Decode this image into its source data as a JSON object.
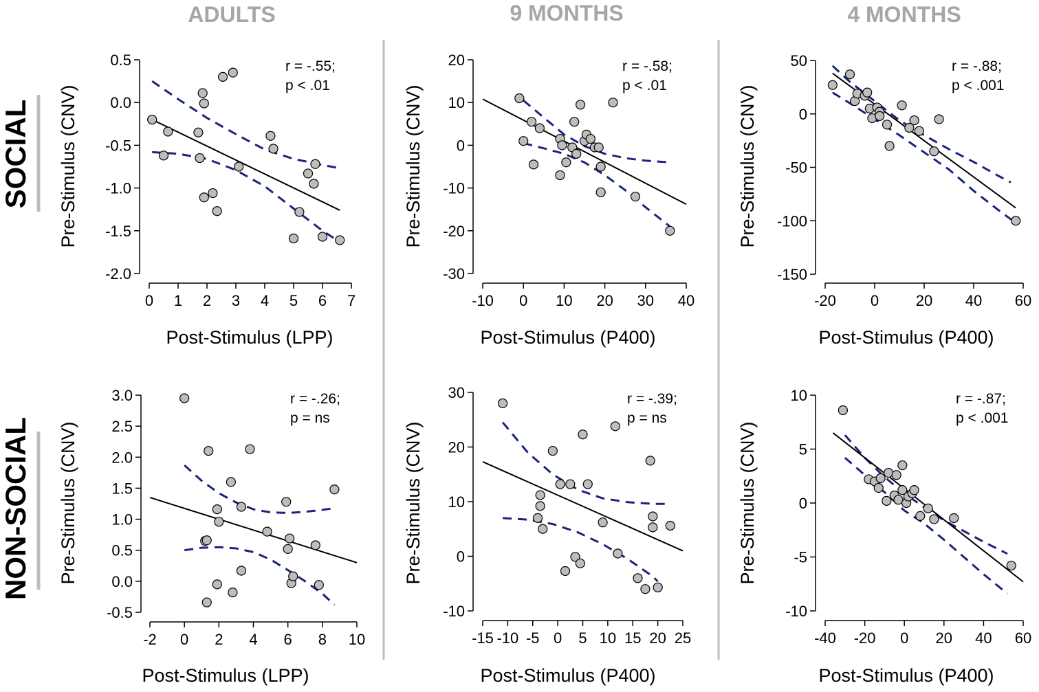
{
  "column_titles": [
    "ADULTS",
    "9 MONTHS",
    "4 MONTHS"
  ],
  "row_titles": [
    "SOCIAL",
    "NON-SOCIAL"
  ],
  "colors": {
    "column_title": "#a6a6a6",
    "separator": "#bdbdbd",
    "point_fill": "#bdbdbd",
    "regression_line": "#000000",
    "confidence_band": "#1a237e"
  },
  "chart_data": [
    {
      "id": "social-adults",
      "type": "scatter",
      "xlabel": "Post-Stimulus (LPP)",
      "ylabel": "Pre-Stimulus (CNV)",
      "xlim": [
        0,
        7
      ],
      "ylim": [
        -2.0,
        0.5
      ],
      "xticks": [
        0,
        1,
        2,
        3,
        4,
        5,
        6,
        7
      ],
      "xtick_labels": [
        "0",
        "1",
        "2",
        "3",
        "4",
        "5",
        "6",
        "7"
      ],
      "yticks": [
        -2.0,
        -1.5,
        -1.0,
        -0.5,
        0.0,
        0.5
      ],
      "ytick_labels": [
        "-2.0",
        "-1.5",
        "-1.0",
        "-0.5",
        "0.0",
        "0.5"
      ],
      "stats": [
        "r = -.55;",
        "p < .01"
      ],
      "points": [
        [
          0.1,
          -0.2
        ],
        [
          0.5,
          -0.62
        ],
        [
          0.65,
          -0.34
        ],
        [
          1.7,
          -0.35
        ],
        [
          1.75,
          -0.65
        ],
        [
          1.85,
          0.11
        ],
        [
          1.9,
          -0.01
        ],
        [
          1.9,
          -1.11
        ],
        [
          2.2,
          -1.06
        ],
        [
          2.35,
          -1.27
        ],
        [
          2.55,
          0.3
        ],
        [
          2.9,
          0.35
        ],
        [
          3.1,
          -0.75
        ],
        [
          4.2,
          -0.39
        ],
        [
          4.3,
          -0.54
        ],
        [
          5.2,
          -1.28
        ],
        [
          5.0,
          -1.59
        ],
        [
          5.5,
          -0.83
        ],
        [
          5.7,
          -0.95
        ],
        [
          5.75,
          -0.72
        ],
        [
          6.0,
          -1.57
        ],
        [
          6.6,
          -1.61
        ]
      ],
      "fit": [
        [
          0.1,
          -0.2
        ],
        [
          6.6,
          -1.26
        ]
      ],
      "ci_upper": [
        [
          0.1,
          0.25
        ],
        [
          1.0,
          0.04
        ],
        [
          2.0,
          -0.18
        ],
        [
          3.0,
          -0.37
        ],
        [
          4.0,
          -0.55
        ],
        [
          5.0,
          -0.66
        ],
        [
          6.0,
          -0.73
        ],
        [
          6.6,
          -0.77
        ]
      ],
      "ci_lower": [
        [
          0.1,
          -0.58
        ],
        [
          1.0,
          -0.6
        ],
        [
          2.0,
          -0.66
        ],
        [
          3.0,
          -0.79
        ],
        [
          4.0,
          -0.98
        ],
        [
          5.0,
          -1.24
        ],
        [
          6.0,
          -1.5
        ],
        [
          6.6,
          -1.63
        ]
      ]
    },
    {
      "id": "social-9-months",
      "type": "scatter",
      "xlabel": "Post-Stimulus (P400)",
      "ylabel": "Pre-Stimulus (CNV)",
      "xlim": [
        -10,
        40
      ],
      "ylim": [
        -30,
        20
      ],
      "xticks": [
        -10,
        0,
        10,
        20,
        30,
        40
      ],
      "xtick_labels": [
        "-10",
        "0",
        "10",
        "20",
        "30",
        "40"
      ],
      "yticks": [
        -30,
        -20,
        -10,
        0,
        10,
        20
      ],
      "ytick_labels": [
        "-30",
        "-20",
        "-10",
        "0",
        "10",
        "20"
      ],
      "stats": [
        "r = -.58;",
        "p < .01"
      ],
      "points": [
        [
          -1,
          11
        ],
        [
          0,
          1
        ],
        [
          2,
          5.5
        ],
        [
          2.5,
          -4.5
        ],
        [
          4,
          4
        ],
        [
          9,
          -7
        ],
        [
          9,
          1.5
        ],
        [
          9.5,
          0
        ],
        [
          10.5,
          -4
        ],
        [
          12,
          -0.5
        ],
        [
          12.5,
          5.5
        ],
        [
          13,
          -2
        ],
        [
          14,
          9.5
        ],
        [
          15,
          1
        ],
        [
          15.5,
          2.5
        ],
        [
          16.5,
          1.5
        ],
        [
          17.5,
          -0.5
        ],
        [
          18.5,
          -0.5
        ],
        [
          19,
          -5
        ],
        [
          19,
          -11
        ],
        [
          22,
          10
        ],
        [
          27.5,
          -12
        ],
        [
          36,
          -20
        ]
      ],
      "fit": [
        [
          -10,
          10.8
        ],
        [
          40,
          -13.8
        ]
      ],
      "ci_upper": [
        [
          0,
          10.5
        ],
        [
          5,
          6.5
        ],
        [
          10,
          2.5
        ],
        [
          15,
          -0.2
        ],
        [
          20,
          -2
        ],
        [
          25,
          -3
        ],
        [
          30,
          -3.6
        ],
        [
          36,
          -4
        ]
      ],
      "ci_lower": [
        [
          0,
          0.5
        ],
        [
          5,
          -0.7
        ],
        [
          10,
          -2
        ],
        [
          15,
          -4
        ],
        [
          20,
          -7
        ],
        [
          25,
          -10.5
        ],
        [
          30,
          -14.5
        ],
        [
          36,
          -19
        ]
      ]
    },
    {
      "id": "social-4-months",
      "type": "scatter",
      "xlabel": "Post-Stimulus (P400)",
      "ylabel": "Pre-Stimulus (CNV)",
      "xlim": [
        -20,
        60
      ],
      "ylim": [
        -150,
        50
      ],
      "xticks": [
        -20,
        0,
        20,
        40,
        60
      ],
      "xtick_labels": [
        "-20",
        "0",
        "20",
        "40",
        "60"
      ],
      "yticks": [
        -150,
        -100,
        -50,
        0,
        50
      ],
      "ytick_labels": [
        "-150",
        "-100",
        "-50",
        "0",
        "50"
      ],
      "stats": [
        "r = -.88;",
        "p < .001"
      ],
      "points": [
        [
          -17,
          27
        ],
        [
          -10,
          37
        ],
        [
          -8,
          12
        ],
        [
          -7,
          19
        ],
        [
          -4,
          17
        ],
        [
          -3,
          20
        ],
        [
          -2,
          5
        ],
        [
          -1,
          -4
        ],
        [
          1,
          6
        ],
        [
          2,
          2
        ],
        [
          2,
          -2
        ],
        [
          5,
          -10
        ],
        [
          6,
          -30
        ],
        [
          11,
          8
        ],
        [
          14,
          -13
        ],
        [
          16,
          -6
        ],
        [
          18,
          -16
        ],
        [
          24,
          -35
        ],
        [
          26,
          -5
        ],
        [
          57,
          -100
        ]
      ],
      "fit": [
        [
          -17,
          38
        ],
        [
          57,
          -88
        ]
      ],
      "ci_upper": [
        [
          -17,
          45
        ],
        [
          -10,
          30
        ],
        [
          0,
          12
        ],
        [
          10,
          -6
        ],
        [
          20,
          -20
        ],
        [
          30,
          -33
        ],
        [
          40,
          -45
        ],
        [
          50,
          -58
        ],
        [
          55,
          -64
        ]
      ],
      "ci_lower": [
        [
          -17,
          20
        ],
        [
          -10,
          10
        ],
        [
          0,
          -5
        ],
        [
          10,
          -20
        ],
        [
          20,
          -36
        ],
        [
          30,
          -52
        ],
        [
          40,
          -72
        ],
        [
          50,
          -90
        ],
        [
          57,
          -102
        ]
      ]
    },
    {
      "id": "non-social-adults",
      "type": "scatter",
      "xlabel": "Post-Stimulus (LPP)",
      "ylabel": "Pre-Stimulus (CNV)",
      "xlim": [
        -2,
        10
      ],
      "ylim": [
        -0.5,
        3.0
      ],
      "xticks": [
        -2,
        0,
        2,
        4,
        6,
        8,
        10
      ],
      "xtick_labels": [
        "-2",
        "0",
        "2",
        "4",
        "6",
        "8",
        "10"
      ],
      "yticks": [
        -0.5,
        0.0,
        0.5,
        1.0,
        1.5,
        2.0,
        2.5,
        3.0
      ],
      "ytick_labels": [
        "-0.5",
        "0.0",
        "0.5",
        "1.0",
        "1.5",
        "2.0",
        "2.5",
        "3.0"
      ],
      "stats": [
        "r = -.26;",
        "p = ns"
      ],
      "points": [
        [
          0,
          2.95
        ],
        [
          1.2,
          0.65
        ],
        [
          1.3,
          0.66
        ],
        [
          1.3,
          -0.34
        ],
        [
          1.4,
          2.1
        ],
        [
          1.9,
          1.16
        ],
        [
          1.9,
          -0.05
        ],
        [
          2.0,
          0.96
        ],
        [
          2.7,
          1.6
        ],
        [
          2.8,
          -0.18
        ],
        [
          3.3,
          1.2
        ],
        [
          3.3,
          0.17
        ],
        [
          3.8,
          2.13
        ],
        [
          4.8,
          0.8
        ],
        [
          5.9,
          1.28
        ],
        [
          6.0,
          0.52
        ],
        [
          6.1,
          0.69
        ],
        [
          6.2,
          -0.03
        ],
        [
          6.3,
          0.08
        ],
        [
          7.6,
          0.58
        ],
        [
          7.8,
          -0.06
        ],
        [
          8.7,
          1.48
        ]
      ],
      "fit": [
        [
          -2,
          1.35
        ],
        [
          10,
          0.3
        ]
      ],
      "ci_upper": [
        [
          0,
          1.87
        ],
        [
          1,
          1.62
        ],
        [
          2,
          1.42
        ],
        [
          3,
          1.27
        ],
        [
          4,
          1.16
        ],
        [
          5,
          1.11
        ],
        [
          6,
          1.1
        ],
        [
          7,
          1.12
        ],
        [
          8,
          1.15
        ],
        [
          8.7,
          1.18
        ]
      ],
      "ci_lower": [
        [
          0,
          0.5
        ],
        [
          1,
          0.54
        ],
        [
          2,
          0.55
        ],
        [
          3,
          0.53
        ],
        [
          4,
          0.47
        ],
        [
          5,
          0.35
        ],
        [
          6,
          0.18
        ],
        [
          7,
          0
        ],
        [
          8,
          -0.2
        ],
        [
          8.7,
          -0.38
        ]
      ]
    },
    {
      "id": "non-social-9-months",
      "type": "scatter",
      "xlabel": "Post-Stimulus (P400)",
      "ylabel": "Pre-Stimulus (CNV)",
      "xlim": [
        -15,
        25
      ],
      "ylim": [
        -10,
        30
      ],
      "xticks": [
        -15,
        -10,
        -5,
        0,
        5,
        10,
        15,
        20,
        25
      ],
      "xtick_labels": [
        "-15",
        "-10",
        "-5",
        "0",
        "5",
        "10",
        "15",
        "20",
        "25"
      ],
      "yticks": [
        -10,
        0,
        10,
        20,
        30
      ],
      "ytick_labels": [
        "-10",
        "0",
        "10",
        "20",
        "30"
      ],
      "stats": [
        "r = -.39;",
        "p = ns"
      ],
      "points": [
        [
          -11,
          28
        ],
        [
          -4,
          7
        ],
        [
          -3.5,
          11.2
        ],
        [
          -3.5,
          9.2
        ],
        [
          -3,
          5
        ],
        [
          -1,
          19.3
        ],
        [
          0.5,
          13.2
        ],
        [
          1.5,
          -2.7
        ],
        [
          2.5,
          13.2
        ],
        [
          3.5,
          -0.1
        ],
        [
          4.5,
          -1.3
        ],
        [
          5,
          22.3
        ],
        [
          6,
          13.2
        ],
        [
          9,
          6.2
        ],
        [
          11.5,
          23.8
        ],
        [
          12,
          0.5
        ],
        [
          16,
          -4
        ],
        [
          17.5,
          -6
        ],
        [
          18.5,
          17.5
        ],
        [
          19,
          7.3
        ],
        [
          19,
          5.3
        ],
        [
          20,
          -5.7
        ],
        [
          22.5,
          5.6
        ]
      ],
      "fit": [
        [
          -15,
          17.3
        ],
        [
          25,
          1
        ]
      ],
      "ci_upper": [
        [
          -11,
          24.5
        ],
        [
          -6,
          19
        ],
        [
          -1,
          15
        ],
        [
          4,
          12.2
        ],
        [
          9,
          10.6
        ],
        [
          14,
          9.9
        ],
        [
          19,
          9.6
        ],
        [
          22,
          9.6
        ]
      ],
      "ci_lower": [
        [
          -11,
          7
        ],
        [
          -6,
          6.7
        ],
        [
          -1,
          5.9
        ],
        [
          4,
          4.4
        ],
        [
          9,
          2.2
        ],
        [
          14,
          -0.5
        ],
        [
          19,
          -3.7
        ],
        [
          20,
          -4.6
        ]
      ]
    },
    {
      "id": "non-social-4-months",
      "type": "scatter",
      "xlabel": "Post-Stimulus (P400)",
      "ylabel": "Pre-Stimulus (CNV)",
      "xlim": [
        -40,
        60
      ],
      "ylim": [
        -10,
        10
      ],
      "xticks": [
        -40,
        -20,
        0,
        20,
        40,
        60
      ],
      "xtick_labels": [
        "-40",
        "-20",
        "0",
        "20",
        "40",
        "60"
      ],
      "yticks": [
        -10,
        -5,
        0,
        5,
        10
      ],
      "ytick_labels": [
        "-10",
        "-5",
        "0",
        "5",
        "10"
      ],
      "stats": [
        "r = -.87;",
        "p < .001"
      ],
      "points": [
        [
          -31,
          8.6
        ],
        [
          -18,
          2.2
        ],
        [
          -15,
          2
        ],
        [
          -13,
          1.4
        ],
        [
          -12,
          2.3
        ],
        [
          -9,
          0.2
        ],
        [
          -8,
          2.8
        ],
        [
          -5,
          0.7
        ],
        [
          -4,
          2.6
        ],
        [
          -3,
          0.3
        ],
        [
          -1,
          3.5
        ],
        [
          -1,
          1.2
        ],
        [
          1,
          0
        ],
        [
          2,
          0.6
        ],
        [
          4,
          0.9
        ],
        [
          5,
          1.2
        ],
        [
          8,
          -1.2
        ],
        [
          12,
          -0.5
        ],
        [
          15,
          -1.5
        ],
        [
          25,
          -1.4
        ],
        [
          54,
          -5.8
        ]
      ],
      "fit": [
        [
          -36,
          6.5
        ],
        [
          60,
          -7.3
        ]
      ],
      "ci_upper": [
        [
          -30,
          6.3
        ],
        [
          -20,
          4.2
        ],
        [
          -10,
          2.4
        ],
        [
          0,
          0.9
        ],
        [
          10,
          -0.4
        ],
        [
          20,
          -1.6
        ],
        [
          30,
          -2.6
        ],
        [
          40,
          -3.6
        ],
        [
          52,
          -4.7
        ]
      ],
      "ci_lower": [
        [
          -30,
          4.2
        ],
        [
          -20,
          2.6
        ],
        [
          -10,
          1
        ],
        [
          0,
          -0.7
        ],
        [
          10,
          -1.9
        ],
        [
          20,
          -3.4
        ],
        [
          30,
          -5
        ],
        [
          40,
          -6.6
        ],
        [
          52,
          -8.4
        ]
      ]
    }
  ]
}
